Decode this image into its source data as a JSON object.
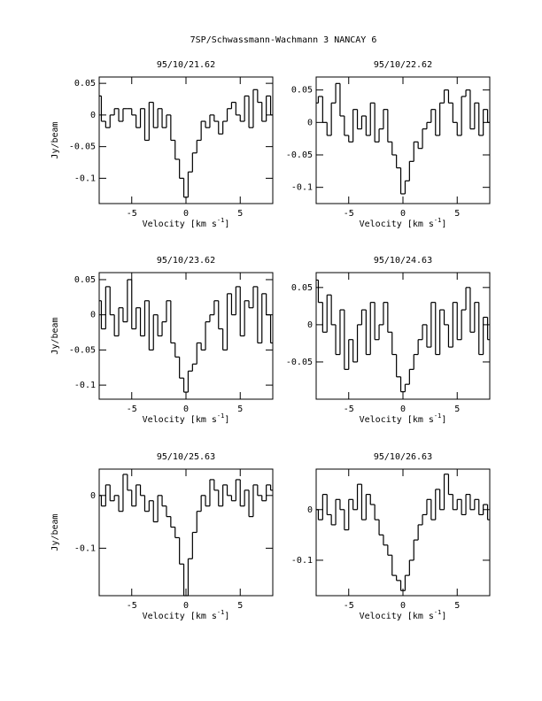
{
  "title": "7SP/Schwassmann-Wachmann 3   NANCAY     6",
  "chart_data": [
    {
      "type": "line",
      "title": "95/10/21.62",
      "ylabel": "Jy/beam",
      "xlabel": {
        "text": "Velocity [km s",
        "sup": "-1",
        "close": "]"
      },
      "xlim": [
        -8,
        8
      ],
      "xticks": [
        -5,
        0,
        5
      ],
      "ylim": [
        -0.14,
        0.06
      ],
      "yticks": [
        0.05,
        0,
        -0.05,
        -0.1
      ],
      "color": "#000000",
      "x": [
        -8,
        -7.6,
        -7.2,
        -6.8,
        -6.4,
        -6,
        -5.6,
        -5.2,
        -4.8,
        -4.4,
        -4,
        -3.6,
        -3.2,
        -2.8,
        -2.4,
        -2,
        -1.6,
        -1.2,
        -0.8,
        -0.4,
        0,
        0.4,
        0.8,
        1.2,
        1.6,
        2,
        2.4,
        2.8,
        3.2,
        3.6,
        4,
        4.4,
        4.8,
        5.2,
        5.6,
        6,
        6.4,
        6.8,
        7.2,
        7.6,
        8
      ],
      "values": [
        0.03,
        -0.01,
        -0.02,
        0.0,
        0.01,
        -0.01,
        0.01,
        0.01,
        0.0,
        -0.02,
        0.01,
        -0.04,
        0.02,
        -0.02,
        0.01,
        -0.02,
        0.0,
        -0.04,
        -0.07,
        -0.1,
        -0.13,
        -0.09,
        -0.06,
        -0.04,
        -0.01,
        -0.02,
        0.0,
        -0.01,
        -0.03,
        -0.01,
        0.01,
        0.02,
        0.0,
        -0.01,
        0.03,
        -0.02,
        0.04,
        0.02,
        -0.01,
        0.03,
        0.0
      ]
    },
    {
      "type": "line",
      "title": "95/10/22.62",
      "xlabel": {
        "text": "Velocity [km s",
        "sup": "-1",
        "close": "]"
      },
      "xlim": [
        -8,
        8
      ],
      "xticks": [
        -5,
        0,
        5
      ],
      "ylim": [
        -0.125,
        0.07
      ],
      "yticks": [
        0.05,
        0,
        -0.05,
        -0.1
      ],
      "color": "#000000",
      "x": [
        -8,
        -7.6,
        -7.2,
        -6.8,
        -6.4,
        -6,
        -5.6,
        -5.2,
        -4.8,
        -4.4,
        -4,
        -3.6,
        -3.2,
        -2.8,
        -2.4,
        -2,
        -1.6,
        -1.2,
        -0.8,
        -0.4,
        0,
        0.4,
        0.8,
        1.2,
        1.6,
        2,
        2.4,
        2.8,
        3.2,
        3.6,
        4,
        4.4,
        4.8,
        5.2,
        5.6,
        6,
        6.4,
        6.8,
        7.2,
        7.6,
        8
      ],
      "values": [
        0.03,
        0.04,
        0.0,
        -0.02,
        0.03,
        0.06,
        0.01,
        -0.02,
        -0.03,
        0.02,
        -0.01,
        0.01,
        -0.02,
        0.03,
        -0.03,
        -0.01,
        0.02,
        -0.03,
        -0.05,
        -0.07,
        -0.11,
        -0.09,
        -0.06,
        -0.03,
        -0.04,
        -0.01,
        0.0,
        0.02,
        -0.02,
        0.03,
        0.05,
        0.03,
        0.0,
        -0.02,
        0.04,
        0.05,
        -0.01,
        0.03,
        -0.02,
        0.02,
        0.0
      ]
    },
    {
      "type": "line",
      "title": "95/10/23.62",
      "ylabel": "Jy/beam",
      "xlabel": {
        "text": "Velocity [km s",
        "sup": "-1",
        "close": "]"
      },
      "xlim": [
        -8,
        8
      ],
      "xticks": [
        -5,
        0,
        5
      ],
      "ylim": [
        -0.12,
        0.06
      ],
      "yticks": [
        0.05,
        0,
        -0.05,
        -0.1
      ],
      "color": "#000000",
      "x": [
        -8,
        -7.6,
        -7.2,
        -6.8,
        -6.4,
        -6,
        -5.6,
        -5.2,
        -4.8,
        -4.4,
        -4,
        -3.6,
        -3.2,
        -2.8,
        -2.4,
        -2,
        -1.6,
        -1.2,
        -0.8,
        -0.4,
        0,
        0.4,
        0.8,
        1.2,
        1.6,
        2,
        2.4,
        2.8,
        3.2,
        3.6,
        4,
        4.4,
        4.8,
        5.2,
        5.6,
        6,
        6.4,
        6.8,
        7.2,
        7.6,
        8
      ],
      "values": [
        0.02,
        -0.02,
        0.04,
        0.0,
        -0.03,
        0.01,
        -0.01,
        0.05,
        -0.02,
        0.01,
        -0.03,
        0.02,
        -0.05,
        0.0,
        -0.03,
        -0.01,
        0.02,
        -0.04,
        -0.06,
        -0.09,
        -0.11,
        -0.08,
        -0.07,
        -0.04,
        -0.05,
        -0.01,
        0.0,
        0.02,
        -0.02,
        -0.05,
        0.03,
        0.0,
        0.04,
        -0.03,
        0.02,
        0.01,
        0.04,
        -0.04,
        0.03,
        0.0,
        -0.04
      ]
    },
    {
      "type": "line",
      "title": "95/10/24.63",
      "xlabel": {
        "text": "Velocity [km s",
        "sup": "-1",
        "close": "]"
      },
      "xlim": [
        -8,
        8
      ],
      "xticks": [
        -5,
        0,
        5
      ],
      "ylim": [
        -0.1,
        0.07
      ],
      "yticks": [
        0.05,
        0,
        -0.05
      ],
      "color": "#000000",
      "x": [
        -8,
        -7.6,
        -7.2,
        -6.8,
        -6.4,
        -6,
        -5.6,
        -5.2,
        -4.8,
        -4.4,
        -4,
        -3.6,
        -3.2,
        -2.8,
        -2.4,
        -2,
        -1.6,
        -1.2,
        -0.8,
        -0.4,
        0,
        0.4,
        0.8,
        1.2,
        1.6,
        2,
        2.4,
        2.8,
        3.2,
        3.6,
        4,
        4.4,
        4.8,
        5.2,
        5.6,
        6,
        6.4,
        6.8,
        7.2,
        7.6,
        8
      ],
      "values": [
        0.06,
        0.03,
        -0.01,
        0.04,
        0.0,
        -0.04,
        0.02,
        -0.06,
        -0.02,
        -0.05,
        0.0,
        0.02,
        -0.04,
        0.03,
        -0.02,
        0.0,
        0.03,
        -0.01,
        -0.04,
        -0.07,
        -0.09,
        -0.08,
        -0.06,
        -0.04,
        -0.02,
        0.0,
        -0.03,
        0.03,
        -0.04,
        0.02,
        0.0,
        -0.03,
        0.03,
        -0.02,
        0.02,
        0.05,
        -0.01,
        0.03,
        -0.04,
        0.01,
        -0.02
      ]
    },
    {
      "type": "line",
      "title": "95/10/25.63",
      "ylabel": "Jy/beam",
      "xlabel": {
        "text": "Velocity [km s",
        "sup": "-1",
        "close": "]"
      },
      "xlim": [
        -8,
        8
      ],
      "xticks": [
        -5,
        0,
        5
      ],
      "ylim": [
        -0.19,
        0.05
      ],
      "yticks": [
        0,
        -0.1
      ],
      "color": "#000000",
      "x": [
        -8,
        -7.6,
        -7.2,
        -6.8,
        -6.4,
        -6,
        -5.6,
        -5.2,
        -4.8,
        -4.4,
        -4,
        -3.6,
        -3.2,
        -2.8,
        -2.4,
        -2,
        -1.6,
        -1.2,
        -0.8,
        -0.4,
        0,
        0.4,
        0.8,
        1.2,
        1.6,
        2,
        2.4,
        2.8,
        3.2,
        3.6,
        4,
        4.4,
        4.8,
        5.2,
        5.6,
        6,
        6.4,
        6.8,
        7.2,
        7.6,
        8
      ],
      "values": [
        0.0,
        -0.02,
        0.02,
        -0.01,
        0.0,
        -0.03,
        0.04,
        0.01,
        -0.02,
        0.02,
        0.0,
        -0.03,
        -0.01,
        -0.05,
        0.0,
        -0.02,
        -0.04,
        -0.06,
        -0.08,
        -0.13,
        -0.19,
        -0.12,
        -0.07,
        -0.03,
        0.0,
        -0.02,
        0.03,
        0.01,
        -0.02,
        0.02,
        0.0,
        -0.01,
        0.03,
        -0.02,
        0.01,
        -0.04,
        0.02,
        0.0,
        -0.01,
        0.02,
        0.01
      ]
    },
    {
      "type": "line",
      "title": "95/10/26.63",
      "xlabel": {
        "text": "Velocity [km s",
        "sup": "-1",
        "close": "]"
      },
      "xlim": [
        -8,
        8
      ],
      "xticks": [
        -5,
        0,
        5
      ],
      "ylim": [
        -0.17,
        0.08
      ],
      "yticks": [
        0,
        -0.1
      ],
      "color": "#000000",
      "x": [
        -8,
        -7.6,
        -7.2,
        -6.8,
        -6.4,
        -6,
        -5.6,
        -5.2,
        -4.8,
        -4.4,
        -4,
        -3.6,
        -3.2,
        -2.8,
        -2.4,
        -2,
        -1.6,
        -1.2,
        -0.8,
        -0.4,
        0,
        0.4,
        0.8,
        1.2,
        1.6,
        2,
        2.4,
        2.8,
        3.2,
        3.6,
        4,
        4.4,
        4.8,
        5.2,
        5.6,
        6,
        6.4,
        6.8,
        7.2,
        7.6,
        8
      ],
      "values": [
        0.0,
        -0.02,
        0.03,
        -0.01,
        -0.03,
        0.02,
        0.0,
        -0.04,
        0.02,
        0.0,
        0.05,
        -0.02,
        0.03,
        0.01,
        -0.02,
        -0.05,
        -0.07,
        -0.09,
        -0.13,
        -0.14,
        -0.16,
        -0.13,
        -0.1,
        -0.06,
        -0.03,
        -0.01,
        0.02,
        -0.02,
        0.04,
        0.0,
        0.07,
        0.03,
        0.0,
        0.02,
        -0.01,
        0.03,
        0.0,
        0.02,
        -0.01,
        0.01,
        -0.02
      ]
    }
  ]
}
